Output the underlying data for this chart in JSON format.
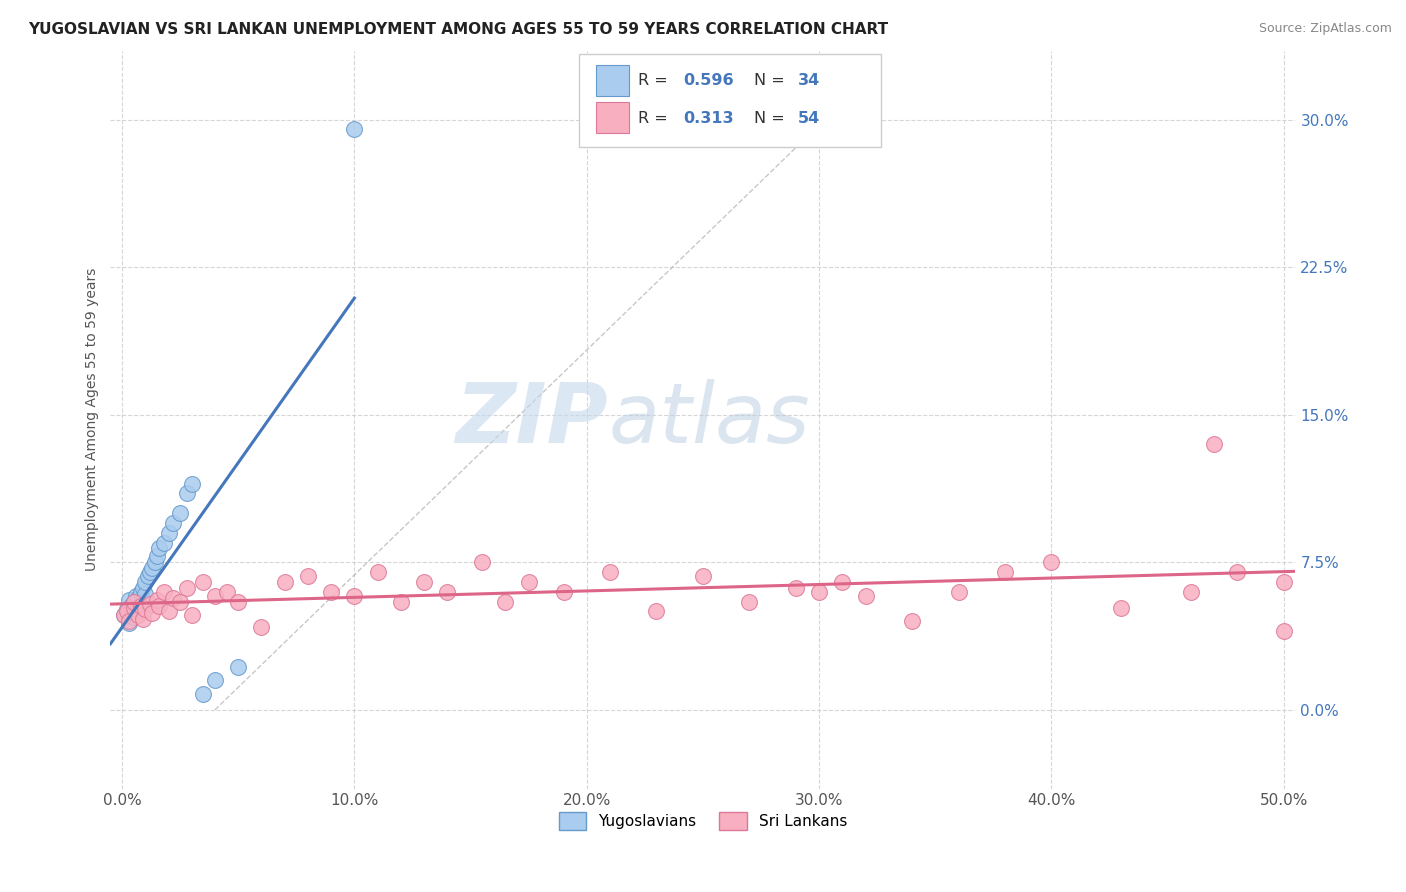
{
  "title": "YUGOSLAVIAN VS SRI LANKAN UNEMPLOYMENT AMONG AGES 55 TO 59 YEARS CORRELATION CHART",
  "source": "Source: ZipAtlas.com",
  "ylabel": "Unemployment Among Ages 55 to 59 years",
  "xlim": [
    -0.005,
    0.505
  ],
  "ylim": [
    -0.04,
    0.335
  ],
  "xticks": [
    0.0,
    0.1,
    0.2,
    0.3,
    0.4,
    0.5
  ],
  "xticklabels": [
    "0.0%",
    "10.0%",
    "20.0%",
    "30.0%",
    "40.0%",
    "50.0%"
  ],
  "yticks": [
    0.0,
    0.075,
    0.15,
    0.225,
    0.3
  ],
  "yticklabels": [
    "0.0%",
    "7.5%",
    "15.0%",
    "22.5%",
    "30.0%"
  ],
  "grid_color": "#cccccc",
  "background_color": "#ffffff",
  "yugo_color": "#aaccee",
  "yugo_edge": "#6699cc",
  "sri_color": "#f8b0c0",
  "sri_edge": "#dd7799",
  "yugo_R": 0.596,
  "yugo_N": 34,
  "sri_R": 0.313,
  "sri_N": 54,
  "yugo_x": [
    0.001,
    0.002,
    0.003,
    0.003,
    0.004,
    0.004,
    0.005,
    0.005,
    0.006,
    0.006,
    0.007,
    0.007,
    0.008,
    0.008,
    0.009,
    0.009,
    0.01,
    0.01,
    0.011,
    0.012,
    0.013,
    0.014,
    0.015,
    0.016,
    0.018,
    0.02,
    0.022,
    0.025,
    0.028,
    0.03,
    0.035,
    0.04,
    0.05,
    0.1
  ],
  "yugo_y": [
    0.048,
    0.051,
    0.044,
    0.056,
    0.049,
    0.053,
    0.047,
    0.055,
    0.05,
    0.058,
    0.052,
    0.057,
    0.054,
    0.06,
    0.056,
    0.062,
    0.059,
    0.065,
    0.068,
    0.07,
    0.072,
    0.075,
    0.078,
    0.082,
    0.085,
    0.09,
    0.095,
    0.1,
    0.11,
    0.115,
    0.008,
    0.015,
    0.022,
    0.295
  ],
  "sri_x": [
    0.001,
    0.002,
    0.003,
    0.005,
    0.005,
    0.007,
    0.008,
    0.009,
    0.01,
    0.012,
    0.013,
    0.015,
    0.016,
    0.018,
    0.02,
    0.022,
    0.025,
    0.028,
    0.03,
    0.035,
    0.04,
    0.045,
    0.05,
    0.06,
    0.07,
    0.08,
    0.09,
    0.1,
    0.11,
    0.12,
    0.13,
    0.14,
    0.155,
    0.165,
    0.175,
    0.19,
    0.21,
    0.23,
    0.25,
    0.27,
    0.29,
    0.3,
    0.31,
    0.32,
    0.34,
    0.36,
    0.38,
    0.4,
    0.43,
    0.46,
    0.48,
    0.5,
    0.5,
    0.47
  ],
  "sri_y": [
    0.048,
    0.05,
    0.045,
    0.052,
    0.055,
    0.048,
    0.053,
    0.046,
    0.051,
    0.054,
    0.049,
    0.056,
    0.053,
    0.06,
    0.05,
    0.057,
    0.055,
    0.062,
    0.048,
    0.065,
    0.058,
    0.06,
    0.055,
    0.042,
    0.065,
    0.068,
    0.06,
    0.058,
    0.07,
    0.055,
    0.065,
    0.06,
    0.075,
    0.055,
    0.065,
    0.06,
    0.07,
    0.05,
    0.068,
    0.055,
    0.062,
    0.06,
    0.065,
    0.058,
    0.045,
    0.06,
    0.07,
    0.075,
    0.052,
    0.06,
    0.07,
    0.065,
    0.04,
    0.135
  ],
  "yugo_line_color": "#4477bb",
  "sri_line_color": "#dd6688",
  "legend_label_yugo": "Yugoslavians",
  "legend_label_sri": "Sri Lankans",
  "title_fontsize": 11,
  "label_fontsize": 10,
  "tick_fontsize": 11,
  "source_fontsize": 9
}
